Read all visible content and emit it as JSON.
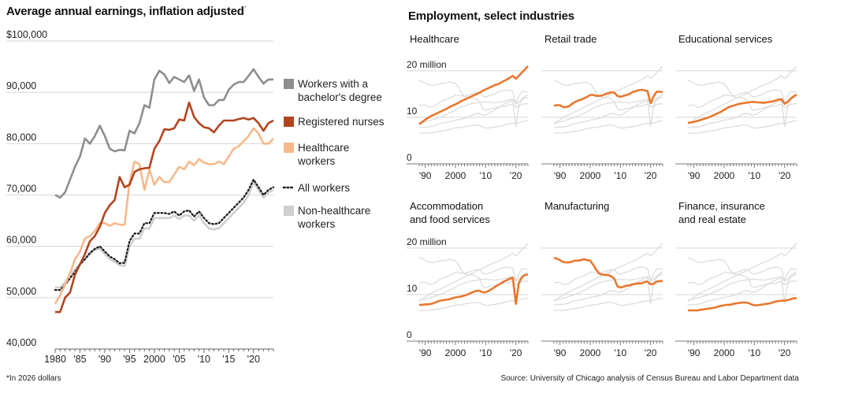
{
  "left_title": "Average annual earnings, inflation adjusted",
  "left_title_marker": "*",
  "footnote": "*In 2026 dollars",
  "right_title": "Employment, select industries",
  "source": "Source: University of Chicago analysis of Census Bureau and Labor Department data",
  "colors": {
    "bachelor": "#8e8e8e",
    "nurses": "#b1451f",
    "healthcare": "#f6b88c",
    "all": "#222222",
    "nonhealth": "#cfcfcf",
    "highlight": "#e8772e",
    "context": "#dcdcdc",
    "grid": "#d6d6d6"
  },
  "chart_data": [
    {
      "type": "line",
      "title": "Average annual earnings, inflation adjusted",
      "ylim": [
        40000,
        100000
      ],
      "xlim": [
        1980,
        2024
      ],
      "y_ticks": [
        40000,
        50000,
        60000,
        70000,
        80000,
        90000,
        100000
      ],
      "y_tick_labels": [
        "40,000",
        "50,000",
        "60,000",
        "70,000",
        "80,000",
        "90,000",
        "$100,000"
      ],
      "x_ticks": [
        1980,
        1985,
        1990,
        1995,
        2000,
        2005,
        2010,
        2015,
        2020
      ],
      "x_tick_labels": [
        "1980",
        "'85",
        "'90",
        "'95",
        "2000",
        "'05",
        "'10",
        "'15",
        "'20"
      ],
      "x": [
        1980,
        1981,
        1982,
        1983,
        1984,
        1985,
        1986,
        1987,
        1988,
        1989,
        1990,
        1991,
        1992,
        1993,
        1994,
        1995,
        1996,
        1997,
        1998,
        1999,
        2000,
        2001,
        2002,
        2003,
        2004,
        2005,
        2006,
        2007,
        2008,
        2009,
        2010,
        2011,
        2012,
        2013,
        2014,
        2015,
        2016,
        2017,
        2018,
        2019,
        2020,
        2021,
        2022,
        2023,
        2024
      ],
      "series": [
        {
          "key": "bachelor",
          "name": "Workers with a bachelor's degree",
          "legend": [
            "Workers with a",
            "bachelor's degree"
          ],
          "style": "solid",
          "values": [
            70000,
            69500,
            70500,
            73000,
            75500,
            77500,
            81000,
            80000,
            81500,
            83500,
            81500,
            79000,
            78500,
            78800,
            78700,
            82500,
            82000,
            84000,
            87500,
            87000,
            92500,
            94200,
            93500,
            91800,
            93000,
            92500,
            92000,
            93300,
            90300,
            92500,
            89000,
            87500,
            87500,
            88500,
            88500,
            90500,
            91500,
            92000,
            92000,
            93200,
            94500,
            93000,
            91700,
            92500,
            92500
          ]
        },
        {
          "key": "nurses",
          "name": "Registered nurses",
          "legend": [
            "Registered nurses"
          ],
          "style": "solid",
          "values": [
            47200,
            47200,
            50000,
            51000,
            54500,
            56500,
            58500,
            61000,
            62000,
            63800,
            66500,
            68000,
            69000,
            73500,
            71500,
            72000,
            74500,
            75000,
            75200,
            75300,
            79000,
            80500,
            82800,
            82700,
            83000,
            84700,
            84500,
            88000,
            85200,
            84000,
            83200,
            83000,
            82200,
            83500,
            84500,
            84500,
            84500,
            84800,
            85000,
            84700,
            85000,
            84000,
            82500,
            84000,
            84500
          ]
        },
        {
          "key": "healthcare",
          "name": "Healthcare workers",
          "legend": [
            "Healthcare",
            "workers"
          ],
          "style": "solid",
          "values": [
            48800,
            50500,
            52500,
            54800,
            57500,
            59000,
            61500,
            62000,
            63000,
            64500,
            64500,
            64000,
            64500,
            64200,
            64200,
            72500,
            76500,
            76000,
            71000,
            75000,
            72000,
            73500,
            72500,
            72500,
            74000,
            75500,
            75000,
            76500,
            75800,
            77000,
            76300,
            76000,
            76000,
            76500,
            76000,
            77500,
            79000,
            79500,
            80500,
            81500,
            83000,
            82000,
            80000,
            80000,
            81000
          ]
        },
        {
          "key": "all",
          "name": "All workers",
          "legend": [
            "All workers"
          ],
          "style": "dotted",
          "values": [
            51500,
            51500,
            52500,
            53800,
            55000,
            56500,
            57500,
            58700,
            59500,
            60000,
            59000,
            58000,
            57500,
            56700,
            56800,
            61000,
            62500,
            62500,
            64500,
            64500,
            66500,
            66500,
            66500,
            66300,
            66800,
            66000,
            66800,
            67000,
            65800,
            66800,
            65500,
            64500,
            64300,
            64500,
            65500,
            66500,
            67500,
            68500,
            69500,
            71000,
            73000,
            71500,
            70000,
            71000,
            71500
          ]
        },
        {
          "key": "nonhealth",
          "name": "Non-healthcare workers",
          "legend": [
            "Non-healthcare",
            "workers"
          ],
          "style": "solid",
          "values": [
            52000,
            52000,
            53000,
            54500,
            55500,
            56500,
            57500,
            58500,
            59300,
            59500,
            58500,
            57500,
            57000,
            56300,
            56200,
            60000,
            61500,
            61500,
            63500,
            63500,
            65500,
            65500,
            65500,
            65500,
            66000,
            65300,
            66000,
            66000,
            65000,
            66000,
            64500,
            63500,
            63300,
            63500,
            64500,
            65500,
            66500,
            67500,
            68500,
            70000,
            72500,
            71000,
            69500,
            70500,
            71000
          ]
        }
      ]
    },
    {
      "type": "line",
      "title": "Employment, select industries",
      "ylim": [
        0,
        22
      ],
      "xlim": [
        1988,
        2024
      ],
      "y_tick_labels": [
        "0",
        "10",
        "20 million"
      ],
      "x_tick_labels": [
        "'90",
        "2000",
        "'10",
        "'20"
      ],
      "x": [
        1988,
        1989,
        1990,
        1991,
        1992,
        1993,
        1994,
        1995,
        1996,
        1997,
        1998,
        1999,
        2000,
        2001,
        2002,
        2003,
        2004,
        2005,
        2006,
        2007,
        2008,
        2009,
        2010,
        2011,
        2012,
        2013,
        2014,
        2015,
        2016,
        2017,
        2018,
        2019,
        2020,
        2021,
        2022,
        2023,
        2024
      ],
      "panels": [
        {
          "key": "healthcare",
          "title": [
            "Healthcare"
          ],
          "values": [
            8.5,
            9.0,
            9.5,
            9.9,
            10.3,
            10.6,
            10.9,
            11.2,
            11.5,
            11.8,
            12.2,
            12.5,
            12.8,
            13.1,
            13.5,
            13.8,
            14.1,
            14.4,
            14.7,
            15.0,
            15.3,
            15.7,
            16.0,
            16.3,
            16.6,
            16.9,
            17.1,
            17.4,
            17.8,
            18.1,
            18.5,
            18.9,
            18.3,
            18.9,
            19.6,
            20.3,
            21.0
          ]
        },
        {
          "key": "retail",
          "title": [
            "Retail trade"
          ],
          "values": [
            12.5,
            12.6,
            12.6,
            12.2,
            12.2,
            12.4,
            12.9,
            13.3,
            13.6,
            13.8,
            14.1,
            14.4,
            14.8,
            14.8,
            14.6,
            14.6,
            14.7,
            15.0,
            15.2,
            15.4,
            15.3,
            14.6,
            14.4,
            14.6,
            14.8,
            15.0,
            15.4,
            15.6,
            15.8,
            15.9,
            15.8,
            15.6,
            13.0,
            14.5,
            15.5,
            15.5,
            15.4
          ]
        },
        {
          "key": "education",
          "title": [
            "Educational services"
          ],
          "values": [
            8.8,
            8.9,
            9.0,
            9.2,
            9.4,
            9.6,
            9.8,
            10.0,
            10.3,
            10.6,
            10.9,
            11.2,
            11.6,
            12.0,
            12.3,
            12.5,
            12.7,
            12.9,
            13.0,
            13.1,
            13.2,
            13.3,
            13.3,
            13.2,
            13.2,
            13.1,
            13.2,
            13.3,
            13.4,
            13.6,
            13.8,
            13.9,
            12.9,
            13.3,
            14.0,
            14.5,
            14.9
          ]
        },
        {
          "key": "accommodation",
          "title": [
            "Accommodation",
            "and food services"
          ],
          "values": [
            7.8,
            7.8,
            7.9,
            7.9,
            8.0,
            8.2,
            8.5,
            8.7,
            8.8,
            8.9,
            9.0,
            9.2,
            9.4,
            9.5,
            9.6,
            9.8,
            10.0,
            10.3,
            10.6,
            10.8,
            10.8,
            10.5,
            10.5,
            10.8,
            11.2,
            11.6,
            12.0,
            12.4,
            12.8,
            13.1,
            13.4,
            13.6,
            8.0,
            12.5,
            13.7,
            14.2,
            14.3
          ]
        },
        {
          "key": "manufacturing",
          "title": [
            "Manufacturing"
          ],
          "values": [
            17.9,
            17.7,
            17.4,
            17.0,
            16.9,
            16.9,
            17.1,
            17.3,
            17.3,
            17.4,
            17.6,
            17.4,
            17.3,
            16.4,
            15.3,
            14.5,
            14.3,
            14.2,
            14.2,
            13.9,
            13.4,
            11.8,
            11.5,
            11.7,
            11.9,
            12.0,
            12.2,
            12.3,
            12.4,
            12.4,
            12.7,
            12.8,
            12.2,
            12.3,
            12.8,
            12.9,
            12.9
          ]
        },
        {
          "key": "finance",
          "title": [
            "Finance, insurance",
            "and real estate"
          ],
          "values": [
            6.6,
            6.6,
            6.6,
            6.6,
            6.7,
            6.8,
            6.9,
            7.0,
            7.1,
            7.2,
            7.4,
            7.6,
            7.7,
            7.8,
            7.8,
            8.0,
            8.1,
            8.2,
            8.3,
            8.3,
            8.2,
            7.9,
            7.7,
            7.7,
            7.8,
            7.9,
            8.0,
            8.1,
            8.3,
            8.5,
            8.6,
            8.7,
            8.7,
            8.8,
            9.0,
            9.2,
            9.2
          ]
        }
      ]
    }
  ]
}
